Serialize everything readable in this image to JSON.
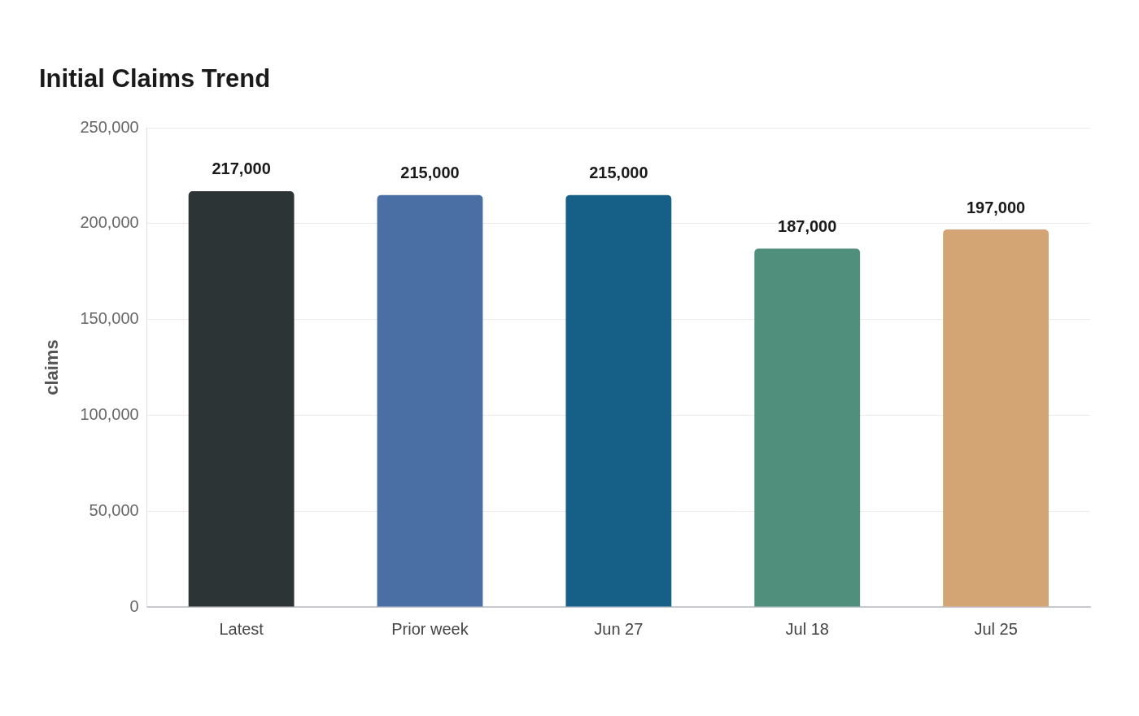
{
  "chart_data": {
    "type": "bar",
    "title": "Initial Claims Trend",
    "ylabel": "claims",
    "categories": [
      "Latest",
      "Prior week",
      "Jun 27",
      "Jul 18",
      "Jul 25"
    ],
    "values": [
      217000,
      215000,
      215000,
      187000,
      197000
    ],
    "value_labels": [
      "217,000",
      "215,000",
      "215,000",
      "187,000",
      "197,000"
    ],
    "colors": [
      "#2d3436",
      "#4a6fa5",
      "#166088",
      "#4f8f7b",
      "#d4a574"
    ],
    "ylim": [
      0,
      250000
    ],
    "yticks": [
      0,
      {
        "value": 50000,
        "label": "50,000"
      },
      {
        "value": 100000,
        "label": "100,000"
      },
      {
        "value": 150000,
        "label": "150,000"
      },
      {
        "value": 200000,
        "label": "200,000"
      },
      {
        "value": 250000,
        "label": "250,000"
      }
    ],
    "grid": "y",
    "legend": false
  }
}
